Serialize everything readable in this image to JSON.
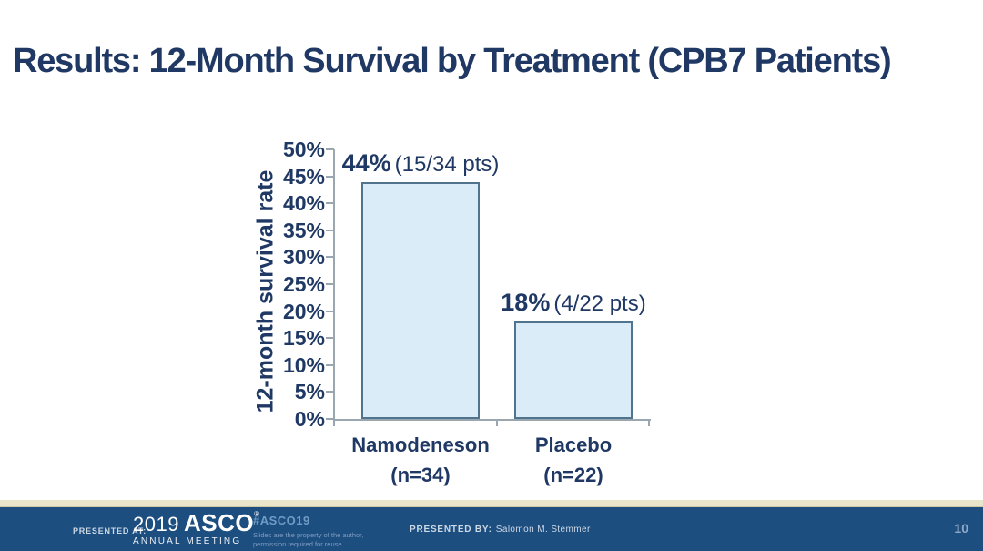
{
  "slide": {
    "title": "Results: 12-Month Survival by Treatment (CPB7 Patients)"
  },
  "chart_data": {
    "type": "bar",
    "ylabel": "12-month survival rate",
    "xlabel": "",
    "ylim": [
      0,
      50
    ],
    "ytick_step": 5,
    "ytick_labels": [
      "0%",
      "5%",
      "10%",
      "15%",
      "20%",
      "25%",
      "30%",
      "35%",
      "40%",
      "45%",
      "50%"
    ],
    "categories": [
      "Namodeneson",
      "Placebo"
    ],
    "category_sublabels": [
      "(n=34)",
      "(n=22)"
    ],
    "values": [
      44,
      18
    ],
    "value_labels": [
      {
        "pct": "44%",
        "detail": "(15/34 pts)"
      },
      {
        "pct": "18%",
        "detail": "(4/22 pts)"
      }
    ],
    "grid": false,
    "legend": false
  },
  "footer": {
    "presented_at_label": "PRESENTED AT:",
    "logo": {
      "year": "2019",
      "org": "ASCO",
      "reg": "®",
      "sub": "ANNUAL MEETING"
    },
    "hashtag": "#ASCO19",
    "disclaimer_line1": "Slides are the property of the author,",
    "disclaimer_line2": "permission required for reuse.",
    "presented_by_label": "PRESENTED BY:",
    "presenter": "Salomon M. Stemmer",
    "page_number": "10"
  },
  "colors": {
    "navy": "#1F3864",
    "bar_fill": "#D9ECF8",
    "bar_border": "#51748E",
    "axis": "#9AA6B0",
    "footer_bg": "#1D4E80",
    "band": "#E9E5CB",
    "hashtag": "#6E9CC6",
    "muted_blue": "#7E9CC0",
    "footer_text": "#CDD9E5",
    "page_num": "#8FA9C6"
  }
}
